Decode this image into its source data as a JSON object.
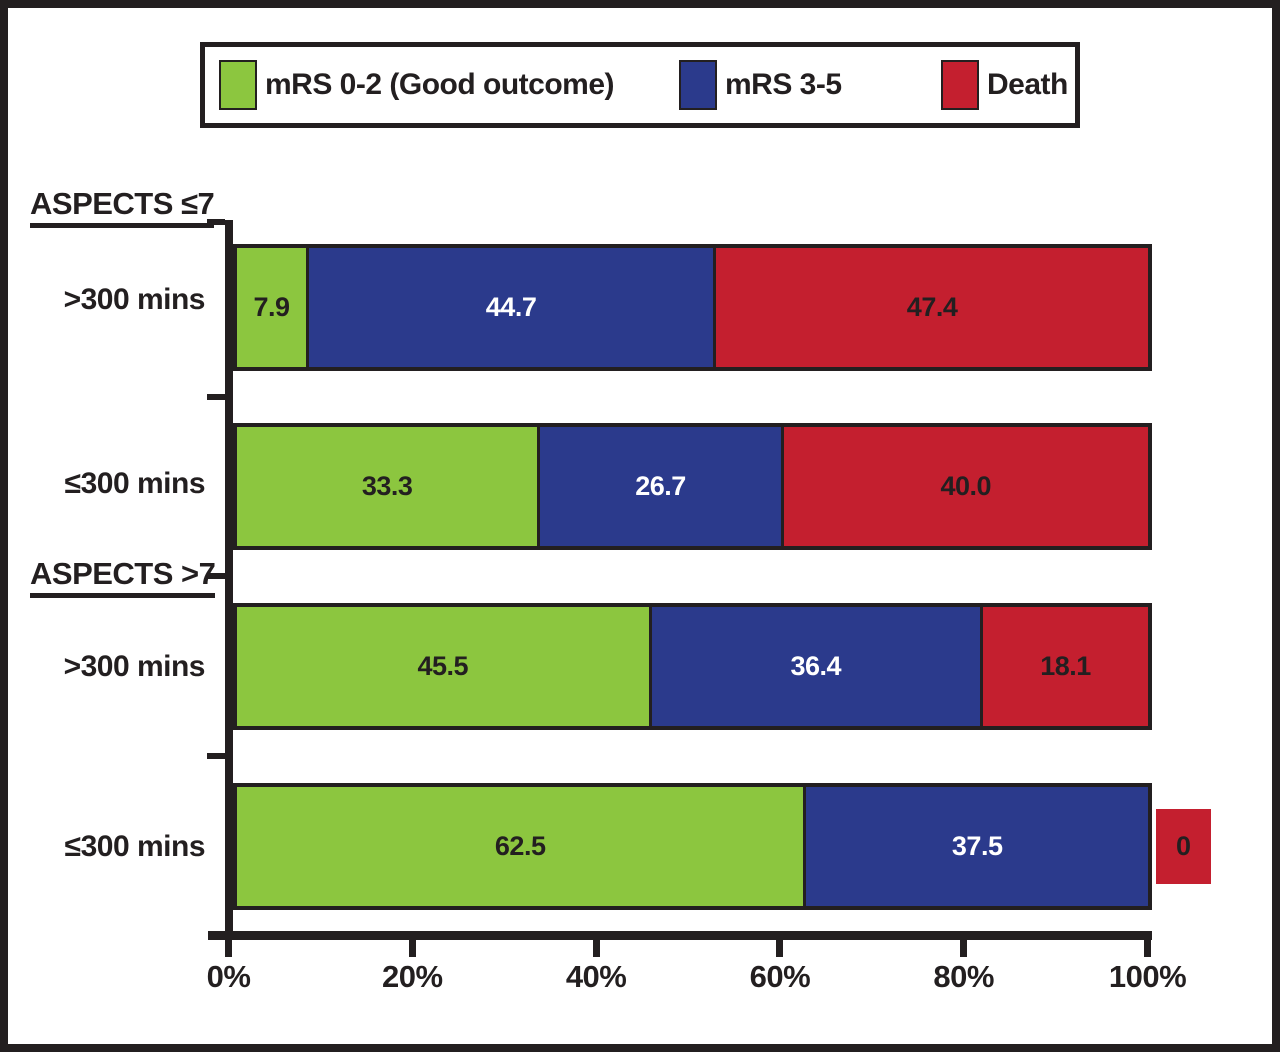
{
  "figure": {
    "background": "#FFFFFF",
    "frame_color": "#231F20"
  },
  "chart_data": {
    "type": "bar",
    "subtype": "horizontal-stacked",
    "unit": "percent",
    "legend_position": "top",
    "grid": false,
    "series": [
      {
        "name": "mRS 0-2 (Good outcome)",
        "color": "#8CC63F",
        "value_color": "#231F20"
      },
      {
        "name": "mRS 3-5",
        "color": "#2B3A8C",
        "value_color": "#FFFFFF"
      },
      {
        "name": "Death",
        "color": "#C41F2F",
        "value_color": "#231F20"
      }
    ],
    "groups": [
      {
        "label": "ASPECTS ≤7",
        "rows": [
          {
            "label": ">300 mins",
            "values": [
              7.9,
              44.7,
              47.4
            ],
            "value_labels": [
              "7.9",
              "44.7",
              "47.4"
            ]
          },
          {
            "label": "≤300 mins",
            "values": [
              33.3,
              26.7,
              40.0
            ],
            "value_labels": [
              "33.3",
              "26.7",
              "40.0"
            ]
          }
        ]
      },
      {
        "label": "ASPECTS >7",
        "rows": [
          {
            "label": ">300 mins",
            "values": [
              45.5,
              36.4,
              18.1
            ],
            "value_labels": [
              "45.5",
              "36.4",
              "18.1"
            ]
          },
          {
            "label": "≤300 mins",
            "values": [
              62.5,
              37.5,
              0
            ],
            "value_labels": [
              "62.5",
              "37.5",
              "0"
            ]
          }
        ]
      }
    ],
    "x_axis": {
      "min": 0,
      "max": 100,
      "tick_labels": [
        "0%",
        "20%",
        "40%",
        "60%",
        "80%",
        "100%"
      ]
    }
  }
}
